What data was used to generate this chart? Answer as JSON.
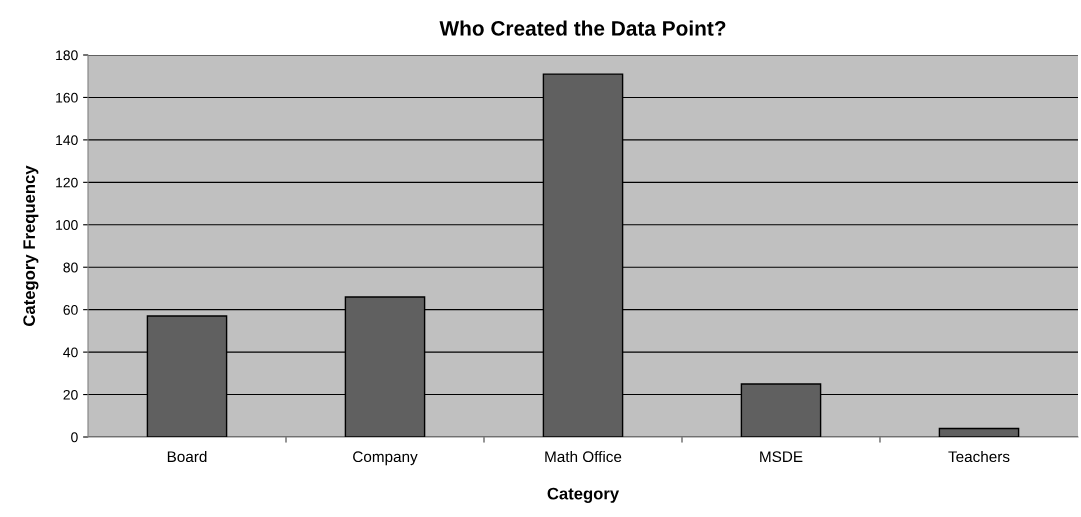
{
  "chart_data": {
    "type": "bar",
    "title": "Who Created the Data Point?",
    "xlabel": "Category",
    "ylabel": "Category Frequency",
    "categories": [
      "Board",
      "Company",
      "Math Office",
      "MSDE",
      "Teachers"
    ],
    "values": [
      57,
      66,
      171,
      25,
      4
    ],
    "color": "#606060",
    "ylim": [
      0,
      180
    ],
    "yticks": [
      0,
      20,
      40,
      60,
      80,
      100,
      120,
      140,
      160,
      180
    ],
    "grid": "y"
  }
}
